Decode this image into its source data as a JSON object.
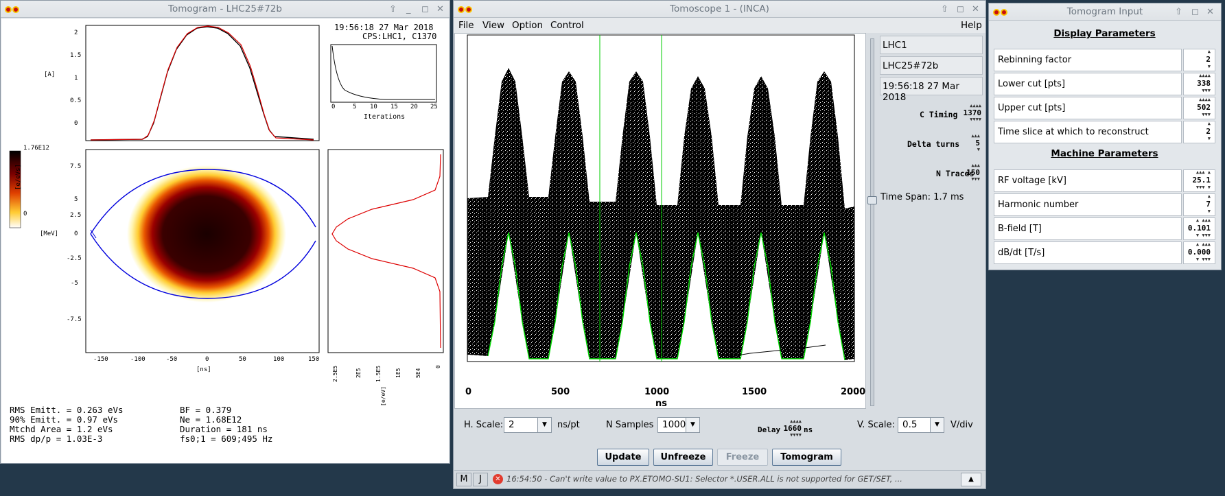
{
  "tomogram_window": {
    "title": "Tomogram - LHC25#72b",
    "timestamp": "19:56:18 27 Mar 2018",
    "source": "CPS:LHC1, C1370",
    "profile_axis": {
      "unit": "[A]",
      "ticks": [
        "2",
        "1.5",
        "1",
        "0.5",
        "0"
      ]
    },
    "colorbar": {
      "max": "1.76E12",
      "min": "0",
      "unit": "[e/eVs]"
    },
    "phase_axis": {
      "unit": "[MeV]",
      "y_ticks": [
        "7.5",
        "5",
        "2.5",
        "0",
        "-2.5",
        "-5",
        "-7.5"
      ],
      "x_ticks": [
        "-150",
        "-100",
        "-50",
        "0",
        "50",
        "100",
        "150"
      ],
      "x_unit": "[ns]"
    },
    "convergence": {
      "xlabel": "Iterations",
      "x_ticks": [
        "0",
        "5",
        "10",
        "15",
        "20",
        "25"
      ]
    },
    "energy_axis": {
      "ticks": [
        "2.5E5",
        "2E5",
        "1.5E5",
        "1E5",
        "5E4",
        "0"
      ],
      "unit": "[e/eV]"
    },
    "stats": {
      "rms_emitt": "RMS Emitt. = 0.263 eVs",
      "emitt_90": "90% Emitt. = 0.97 eVs",
      "mtchd_area": "Mtchd Area = 1.2 eVs",
      "rms_dpp": "RMS dp/p = 1.03E-3",
      "bf": "BF = 0.379",
      "ne": "Ne = 1.68E12",
      "duration": "Duration = 181 ns",
      "fs": "fs0;1 = 609;495 Hz"
    }
  },
  "scope_window": {
    "title": "Tomoscope 1 - (INCA)",
    "menu": {
      "file": "File",
      "view": "View",
      "option": "Option",
      "control": "Control",
      "help": "Help"
    },
    "x_ticks": [
      "0",
      "500",
      "1000",
      "1500",
      "2000"
    ],
    "x_unit": "ns",
    "side": {
      "user": "LHC1",
      "beam": "LHC25#72b",
      "time": "19:56:18 27 Mar 2018",
      "c_timing_label": "C Timing",
      "c_timing": "1370",
      "delta_turns_label": "Delta turns",
      "delta_turns": "5",
      "n_traces_label": "N Traces",
      "n_traces": "150",
      "time_span": "Time Span: 1.7 ms"
    },
    "controls": {
      "h_scale_label": "H. Scale:",
      "h_scale": "2",
      "h_unit": "ns/pt",
      "n_samples_label": "N Samples",
      "n_samples": "1000",
      "delay_label": "Delay",
      "delay": "1660",
      "delay_unit": "ns",
      "v_scale_label": "V. Scale:",
      "v_scale": "0.5",
      "v_unit": "V/div"
    },
    "buttons": {
      "update": "Update",
      "unfreeze": "Unfreeze",
      "freeze": "Freeze",
      "tomogram": "Tomogram"
    },
    "status": {
      "m": "M",
      "j": "J",
      "message": "16:54:50 - Can't write value to PX.ETOMO-SU1: Selector *.USER.ALL is not supported for GET/SET, ..."
    }
  },
  "input_window": {
    "title": "Tomogram Input",
    "display_section": "Display Parameters",
    "machine_section": "Machine Parameters",
    "display_params": [
      {
        "label": "Rebinning factor",
        "value": "2"
      },
      {
        "label": "Lower cut [pts]",
        "value": "338"
      },
      {
        "label": "Upper cut [pts]",
        "value": "502"
      },
      {
        "label": "Time slice at which to reconstruct",
        "value": "2"
      }
    ],
    "machine_params": [
      {
        "label": "RF voltage [kV]",
        "value": "25.1"
      },
      {
        "label": "Harmonic number",
        "value": "7"
      },
      {
        "label": "B-field [T]",
        "value": "0.101"
      },
      {
        "label": "dB/dt [T/s]",
        "value": "0.000"
      }
    ]
  }
}
